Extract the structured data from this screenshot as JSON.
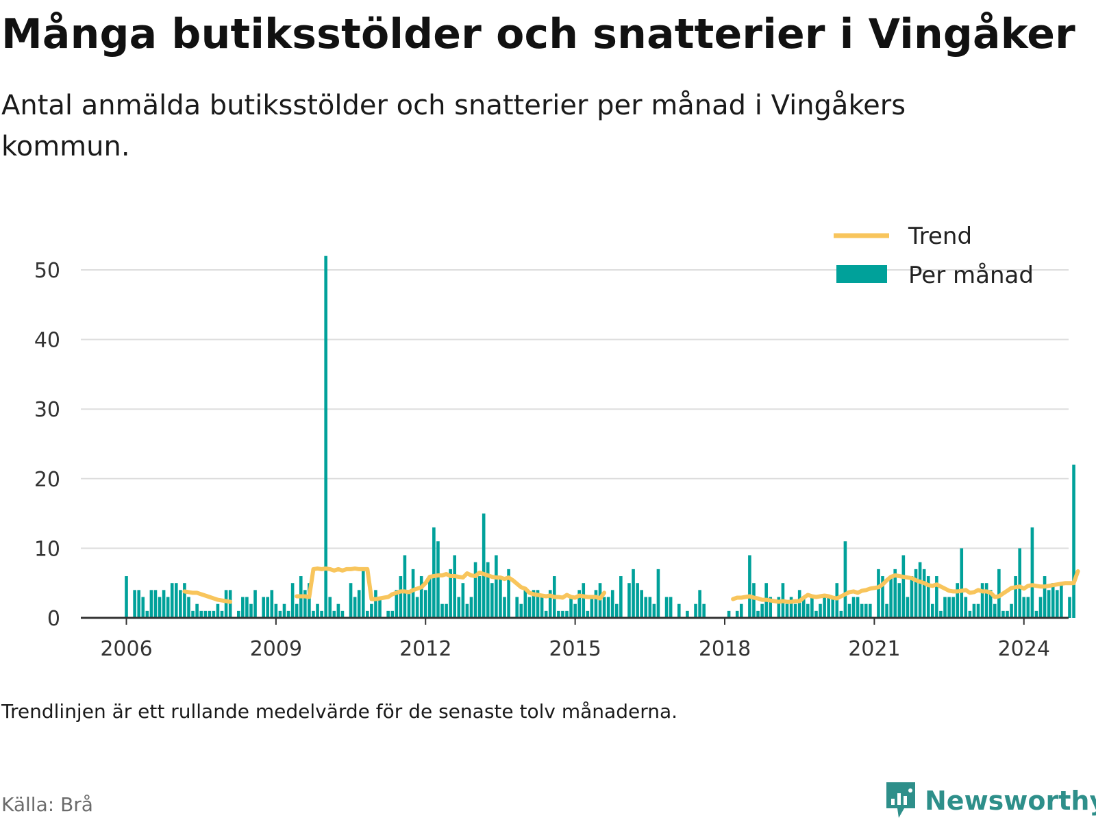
{
  "title": "Många butiksstölder och snatterier i Vingåker",
  "subtitle": "Antal anmälda butiksstölder och snatterier per månad i Vingåkers kommun.",
  "note": "Trendlinjen är ett rullande medelvärde för de senaste tolv månaderna.",
  "source": "Källa: Brå",
  "brand": {
    "name": "Newsworthy",
    "icon": "newsworthy-logo-icon"
  },
  "colors": {
    "bars": "#00a19a",
    "trend": "#f8c55c",
    "grid": "#dddddd",
    "axis": "#333333"
  },
  "chart_data": {
    "type": "bar",
    "title": "Många butiksstölder och snatterier i Vingåker",
    "subtitle": "Antal anmälda butiksstölder och snatterier per månad i Vingåkers kommun.",
    "start": "2006-01",
    "x_ticks": [
      "2006",
      "2009",
      "2012",
      "2015",
      "2018",
      "2021",
      "2024"
    ],
    "y_ticks": [
      0,
      10,
      20,
      30,
      40,
      50
    ],
    "ylim": [
      0,
      53
    ],
    "grid": true,
    "legend_position": "top-right",
    "series": [
      {
        "name": "Per månad",
        "type": "bar",
        "values": [
          6,
          0,
          4,
          4,
          3,
          1,
          4,
          4,
          3,
          4,
          3,
          5,
          5,
          4,
          5,
          3,
          1,
          2,
          1,
          1,
          1,
          1,
          2,
          1,
          4,
          4,
          0,
          1,
          3,
          3,
          2,
          4,
          0,
          3,
          3,
          4,
          2,
          1,
          2,
          1,
          5,
          2,
          6,
          4,
          5,
          1,
          2,
          1,
          52,
          3,
          1,
          2,
          1,
          0,
          5,
          3,
          4,
          7,
          1,
          2,
          4,
          3,
          0,
          1,
          1,
          4,
          6,
          9,
          4,
          7,
          3,
          6,
          4,
          6,
          13,
          11,
          2,
          2,
          7,
          9,
          3,
          5,
          2,
          3,
          8,
          6,
          15,
          8,
          5,
          9,
          6,
          3,
          7,
          0,
          3,
          2,
          4,
          3,
          4,
          4,
          3,
          1,
          4,
          6,
          1,
          1,
          1,
          3,
          2,
          4,
          5,
          1,
          3,
          4,
          5,
          3,
          3,
          4,
          2,
          6,
          0,
          5,
          7,
          5,
          4,
          3,
          3,
          2,
          7,
          0,
          3,
          3,
          0,
          2,
          0,
          1,
          0,
          2,
          4,
          2,
          0,
          1,
          0,
          0,
          0,
          1,
          0,
          1,
          2,
          0,
          9,
          5,
          1,
          2,
          5,
          3,
          0,
          3,
          5,
          2,
          3,
          2,
          4,
          3,
          2,
          3,
          1,
          2,
          3,
          3,
          3,
          5,
          1,
          11,
          2,
          3,
          3,
          2,
          2,
          2,
          0,
          7,
          6,
          2,
          6,
          7,
          5,
          9,
          3,
          6,
          7,
          8,
          7,
          6,
          2,
          6,
          1,
          3,
          3,
          3,
          5,
          10,
          3,
          1,
          2,
          2,
          5,
          5,
          4,
          2,
          7,
          1,
          1,
          2,
          6,
          10,
          3,
          3,
          13,
          1,
          3,
          6,
          4,
          5,
          4,
          5,
          0,
          3,
          22
        ],
        "gaps": [
          "2006-02",
          "2008-03",
          "2010-06",
          "2017-10"
        ]
      },
      {
        "name": "Trend",
        "type": "line",
        "segments": [
          {
            "start": "2007-03",
            "values": [
              3.8,
              3.7,
              3.6,
              3.6,
              3.4,
              3.2,
              3.0,
              2.8,
              2.6,
              2.5,
              2.4,
              2.3
            ]
          },
          {
            "start": "2009-06",
            "values": [
              3.1,
              3.1,
              3.1,
              3.0,
              7.0,
              7.1,
              7.0,
              7.1,
              7.0,
              6.8,
              7.0,
              6.8,
              7.0,
              7.0,
              7.1,
              7.0,
              7.0,
              7.0,
              2.7,
              2.7,
              2.8,
              2.9,
              3.0,
              3.4,
              3.6,
              3.8,
              3.8,
              3.7,
              4.0,
              4.2,
              4.4,
              5.0,
              5.9,
              6.0,
              6.1,
              6.1,
              6.3,
              6.0,
              6.0,
              5.9,
              5.8,
              6.4,
              6.1,
              6.0,
              6.5,
              6.3,
              6.1,
              5.9,
              5.8,
              5.8,
              5.6,
              5.8,
              5.4,
              4.9,
              4.4,
              4.2,
              3.6,
              3.4,
              3.3,
              3.2,
              3.1,
              3.2,
              3.0,
              3.0,
              2.9,
              3.3,
              3.0,
              2.9,
              3.2,
              3.1,
              3.0,
              3.0,
              3.0,
              2.8,
              3.6
            ]
          },
          {
            "start": "2018-03",
            "values": [
              2.7,
              2.9,
              2.9,
              3.0,
              3.1,
              2.9,
              2.8,
              2.6,
              2.6,
              2.5,
              2.4,
              2.3,
              2.4,
              2.3,
              2.3,
              2.4,
              2.4,
              2.9,
              3.3,
              3.1,
              3.0,
              3.1,
              3.2,
              3.1,
              2.9,
              2.8,
              3.1,
              3.4,
              3.7,
              3.8,
              3.6,
              3.9,
              4.0,
              4.2,
              4.3,
              4.4,
              4.8,
              5.4,
              5.9,
              6.1,
              6.0,
              5.9,
              5.8,
              5.7,
              5.4,
              5.2,
              5.0,
              4.7,
              4.6,
              4.8,
              4.5,
              4.2,
              3.9,
              3.8,
              3.8,
              3.9,
              4.0,
              3.6,
              3.7,
              4.0,
              3.8,
              3.8,
              3.6,
              3.0,
              3.1,
              3.5,
              3.9,
              4.3,
              4.4,
              4.5,
              4.2,
              4.6,
              4.7,
              4.6,
              4.5,
              4.5,
              4.6,
              4.7,
              4.8,
              4.9,
              5.0,
              5.0,
              5.0,
              6.7
            ]
          }
        ]
      }
    ]
  }
}
